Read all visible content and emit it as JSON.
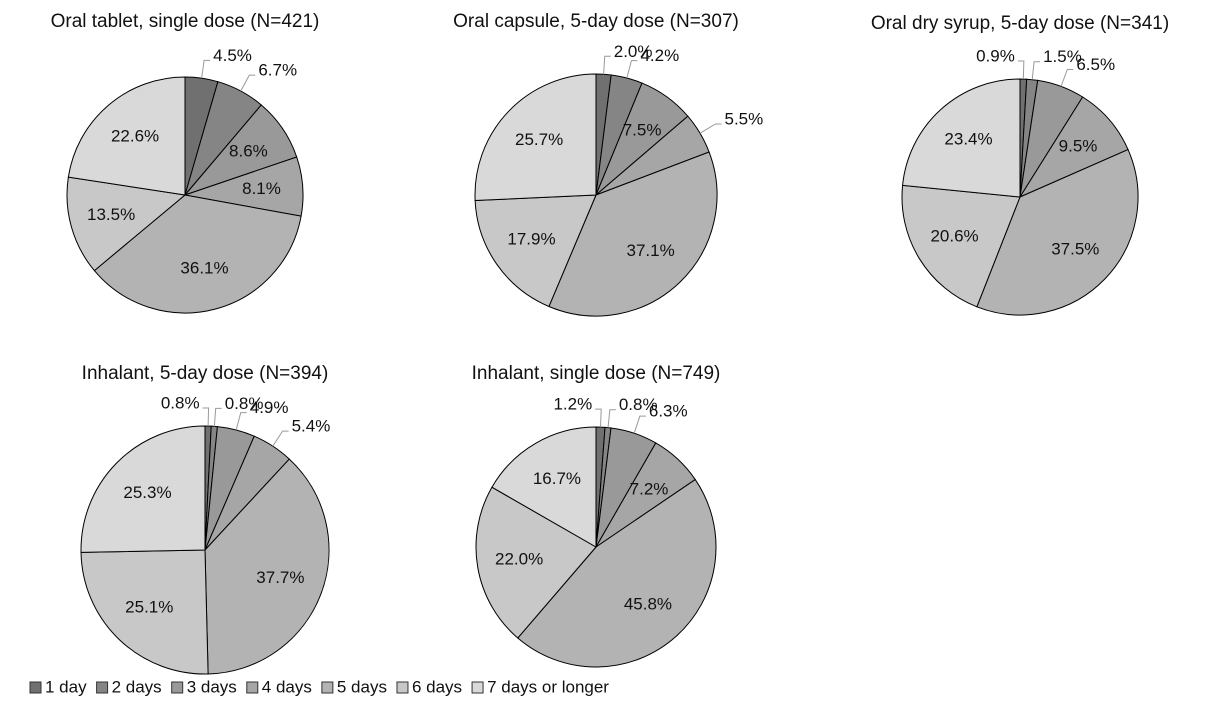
{
  "legend": {
    "names": [
      "1 day",
      "2 days",
      "3 days",
      "4 days",
      "5 days",
      "6 days",
      "7 days or longer"
    ],
    "colors": [
      "#707070",
      "#858585",
      "#999999",
      "#a6a6a6",
      "#b3b3b3",
      "#c8c8c8",
      "#d9d9d9"
    ]
  },
  "chart_data": [
    {
      "type": "pie",
      "title": "Oral tablet, single dose (N=421)",
      "values": [
        4.5,
        6.7,
        8.6,
        8.1,
        36.1,
        13.5,
        22.6
      ],
      "value_labels": [
        "4.5%",
        "6.7%",
        "8.6%",
        "8.1%",
        "36.1%",
        "13.5%",
        "22.6%"
      ]
    },
    {
      "type": "pie",
      "title": "Oral capsule, 5-day dose (N=307)",
      "values": [
        2.0,
        4.2,
        7.5,
        5.5,
        37.1,
        17.9,
        25.7
      ],
      "value_labels": [
        "2.0%",
        "4.2%",
        "7.5%",
        "5.5%",
        "37.1%",
        "17.9%",
        "25.7%"
      ]
    },
    {
      "type": "pie",
      "title": "Oral dry syrup, 5-day dose (N=341)",
      "values": [
        0.9,
        1.5,
        6.5,
        9.5,
        37.5,
        20.6,
        23.4
      ],
      "value_labels": [
        "0.9%",
        "1.5%",
        "6.5%",
        "9.5%",
        "37.5%",
        "20.6%",
        "23.4%"
      ]
    },
    {
      "type": "pie",
      "title": "Inhalant, 5-day dose (N=394)",
      "values": [
        0.8,
        0.8,
        4.9,
        5.4,
        37.7,
        25.1,
        25.3
      ],
      "value_labels": [
        "0.8%",
        "0.8%",
        "4.9%",
        "5.4%",
        "37.7%",
        "25.1%",
        "25.3%"
      ]
    },
    {
      "type": "pie",
      "title": "Inhalant, single dose (N=749)",
      "values": [
        1.2,
        0.8,
        6.3,
        7.2,
        45.8,
        22.0,
        16.7
      ],
      "value_labels": [
        "1.2%",
        "0.8%",
        "6.3%",
        "7.2%",
        "45.8%",
        "22.0%",
        "16.7%"
      ]
    }
  ]
}
